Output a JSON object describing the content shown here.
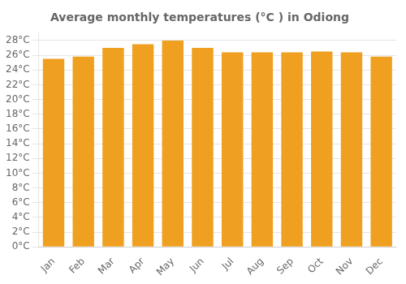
{
  "chart_data": {
    "type": "bar",
    "title": "Average monthly temperatures (°C ) in Odiong",
    "categories": [
      "Jan",
      "Feb",
      "Mar",
      "Apr",
      "May",
      "Jun",
      "Jul",
      "Aug",
      "Sep",
      "Oct",
      "Nov",
      "Dec"
    ],
    "values": [
      25.5,
      25.8,
      27.0,
      27.5,
      28.0,
      27.0,
      26.4,
      26.4,
      26.4,
      26.5,
      26.4,
      25.8
    ],
    "color": "#F0A020",
    "ylim": [
      0,
      29
    ],
    "yticks": [
      {
        "value": 0,
        "label": "0°C"
      },
      {
        "value": 2,
        "label": "2°C"
      },
      {
        "value": 4,
        "label": "4°C"
      },
      {
        "value": 6,
        "label": "6°C"
      },
      {
        "value": 8,
        "label": "8°C"
      },
      {
        "value": 10,
        "label": "10°C"
      },
      {
        "value": 12,
        "label": "12°C"
      },
      {
        "value": 14,
        "label": "14°C"
      },
      {
        "value": 16,
        "label": "16°C"
      },
      {
        "value": 18,
        "label": "18°C"
      },
      {
        "value": 20,
        "label": "20°C"
      },
      {
        "value": 22,
        "label": "22°C"
      },
      {
        "value": 24,
        "label": "24°C"
      },
      {
        "value": 26,
        "label": "26°C"
      },
      {
        "value": 28,
        "label": "28°C"
      }
    ],
    "grid": true
  }
}
